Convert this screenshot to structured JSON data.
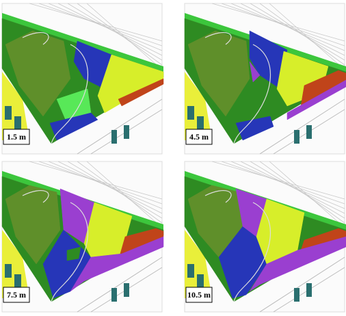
{
  "panels": [
    {
      "label": "1.5 m"
    },
    {
      "label": "4.5 m"
    },
    {
      "label": "7.5 m"
    },
    {
      "label": "10.5 m"
    }
  ]
}
